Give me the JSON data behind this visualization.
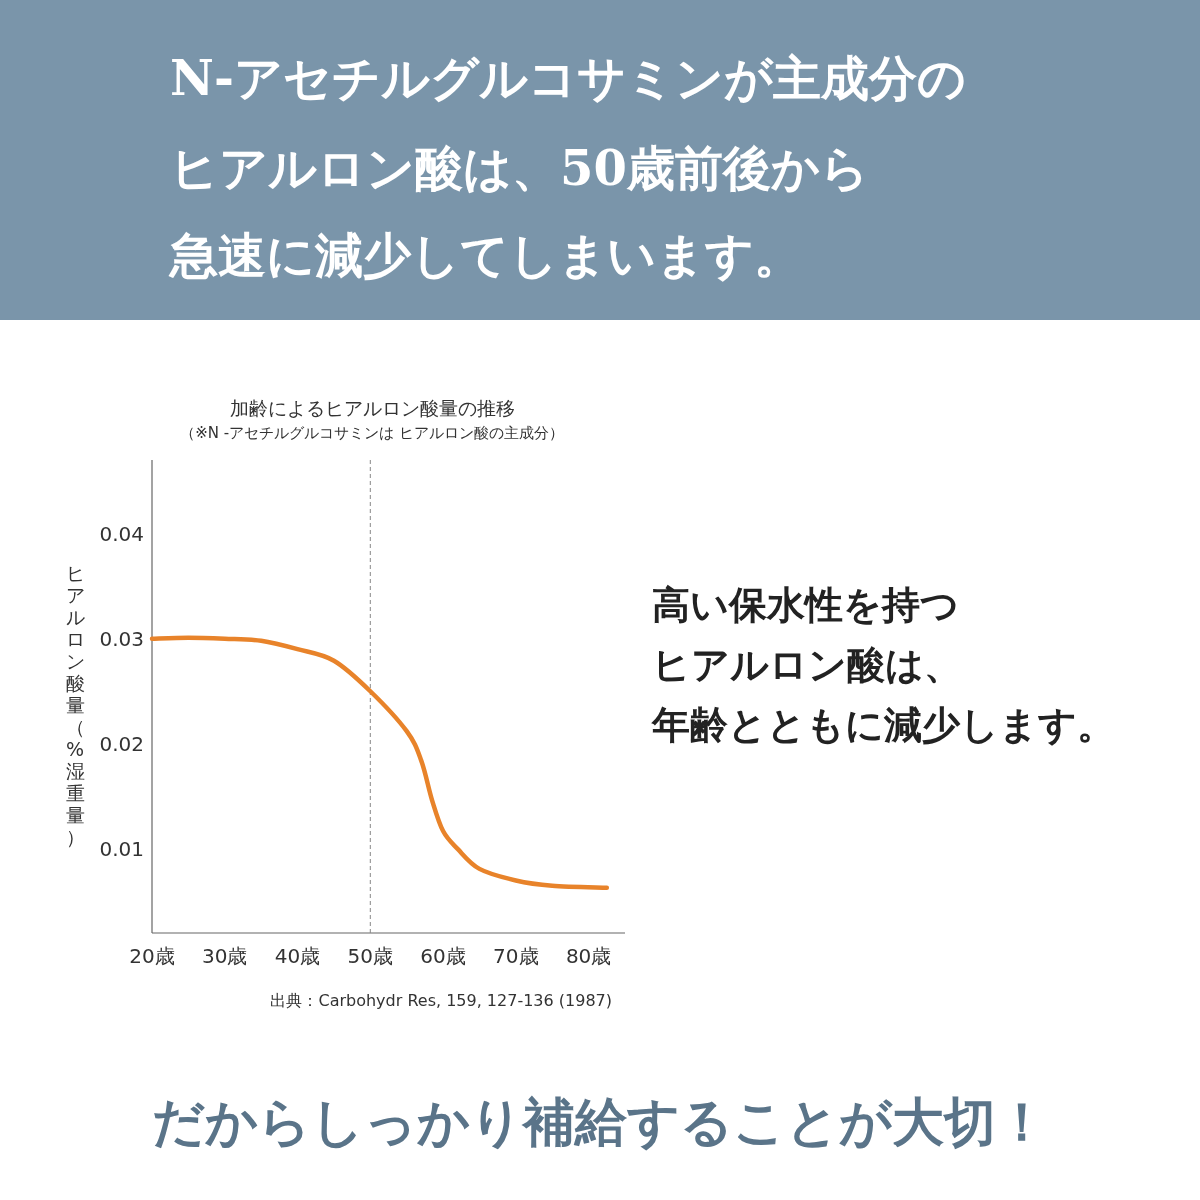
{
  "chart_data": {
    "type": "line",
    "title": "加齢によるヒアルロン酸量の推移",
    "subtitle": "（※N -アセチルグルコサミンは ヒアルロン酸の主成分）",
    "ylabel": "ヒアルロン酸量（%湿重量）",
    "x": [
      20,
      25,
      30,
      35,
      40,
      45,
      50,
      55,
      57,
      58.5,
      60,
      62,
      65,
      70,
      75,
      82.5
    ],
    "series": [
      {
        "color": "#e8832a",
        "values": [
          0.03,
          0.0301,
          0.03,
          0.0298,
          0.029,
          0.0279,
          0.025,
          0.0212,
          0.0184,
          0.0146,
          0.0117,
          0.01,
          0.0081,
          0.007,
          0.0065,
          0.0063
        ]
      }
    ],
    "xlim": [
      20,
      85
    ],
    "ylim": [
      0.002,
      0.047
    ],
    "xticks": [
      {
        "value": 20,
        "label": "20歳"
      },
      {
        "value": 30,
        "label": "30歳"
      },
      {
        "value": 40,
        "label": "40歳"
      },
      {
        "value": 50,
        "label": "50歳"
      },
      {
        "value": 60,
        "label": "60歳"
      },
      {
        "value": 70,
        "label": "70歳"
      },
      {
        "value": 80,
        "label": "80歳"
      }
    ],
    "yticks": [
      0.01,
      0.02,
      0.03,
      0.04
    ],
    "ref_lines": [
      {
        "axis": "x",
        "value": 50,
        "label": null,
        "color": "#888888",
        "line_style": "dashed"
      }
    ],
    "grid": false,
    "marker": "none",
    "line_style": "solid",
    "annotations": [
      "N-アセチルグルコサミンが主成分の",
      "ヒアルロン酸は、50歳前後から",
      "急速に減少してしまいます。",
      "高い保水性を持つ",
      "ヒアルロン酸は、",
      "年齢とともに減少します。",
      "だからしっかり補給することが大切！",
      "出典：Carbohydr Res, 159, 127-136 (1987)"
    ]
  }
}
